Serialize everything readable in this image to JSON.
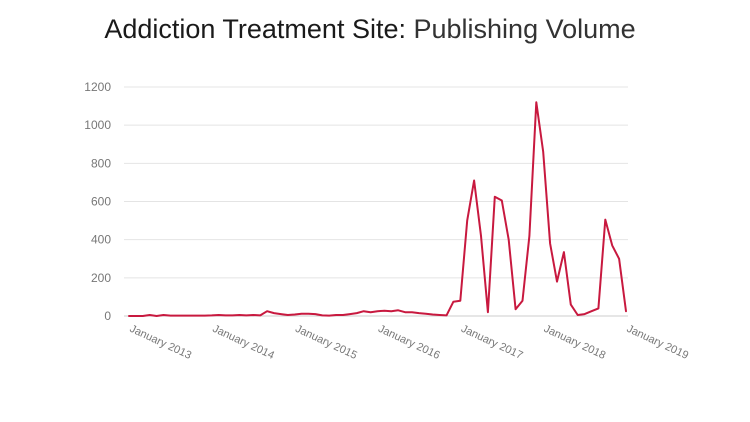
{
  "title": {
    "strong": "Addiction Treatment Site:",
    "light": "Publishing Volume"
  },
  "colors": {
    "line": "#c8193f",
    "grid": "#e4e4e4",
    "tick_text": "#777777",
    "title_text": "#222222"
  },
  "chart_data": {
    "type": "line",
    "title": "Addiction Treatment Site: Publishing Volume",
    "xlabel": "",
    "ylabel": "",
    "grid": true,
    "legend": "none",
    "ylim": [
      0,
      1200
    ],
    "y_ticks": [
      0,
      200,
      400,
      600,
      800,
      1000,
      1200
    ],
    "x_tick_labels": [
      "January 2013",
      "January 2014",
      "January 2015",
      "January 2016",
      "January 2017",
      "January 2018",
      "January 2019"
    ],
    "xlim": [
      "2013-01",
      "2019-01"
    ],
    "series": [
      {
        "x": [
          "2013-01",
          "2013-02",
          "2013-03",
          "2013-04",
          "2013-05",
          "2013-06",
          "2013-07",
          "2013-08",
          "2013-09",
          "2013-10",
          "2013-11",
          "2013-12",
          "2014-01",
          "2014-02",
          "2014-03",
          "2014-04",
          "2014-05",
          "2014-06",
          "2014-07",
          "2014-08",
          "2014-09",
          "2014-10",
          "2014-11",
          "2014-12",
          "2015-01",
          "2015-02",
          "2015-03",
          "2015-04",
          "2015-05",
          "2015-06",
          "2015-07",
          "2015-08",
          "2015-09",
          "2015-10",
          "2015-11",
          "2015-12",
          "2016-01",
          "2016-02",
          "2016-03",
          "2016-04",
          "2016-05",
          "2016-06",
          "2016-07",
          "2016-08",
          "2016-09",
          "2016-10",
          "2016-11",
          "2016-12",
          "2017-01",
          "2017-02",
          "2017-03",
          "2017-04",
          "2017-05",
          "2017-06",
          "2017-07",
          "2017-08",
          "2017-09",
          "2017-10",
          "2017-11",
          "2017-12",
          "2018-01",
          "2018-02",
          "2018-03",
          "2018-04",
          "2018-05",
          "2018-06",
          "2018-07",
          "2018-08",
          "2018-09",
          "2018-10",
          "2018-11",
          "2018-12",
          "2019-01"
        ],
        "values": [
          0,
          0,
          0,
          5,
          0,
          5,
          2,
          2,
          2,
          2,
          2,
          2,
          3,
          5,
          3,
          3,
          5,
          3,
          5,
          3,
          25,
          15,
          10,
          5,
          8,
          12,
          12,
          10,
          3,
          2,
          5,
          5,
          10,
          15,
          25,
          20,
          25,
          28,
          25,
          30,
          20,
          20,
          15,
          12,
          8,
          5,
          3,
          75,
          80,
          500,
          710,
          420,
          20,
          625,
          605,
          400,
          35,
          80,
          420,
          1120,
          860,
          380,
          180,
          335,
          60,
          5,
          10,
          25,
          40,
          505,
          370,
          300,
          25
        ]
      }
    ]
  }
}
